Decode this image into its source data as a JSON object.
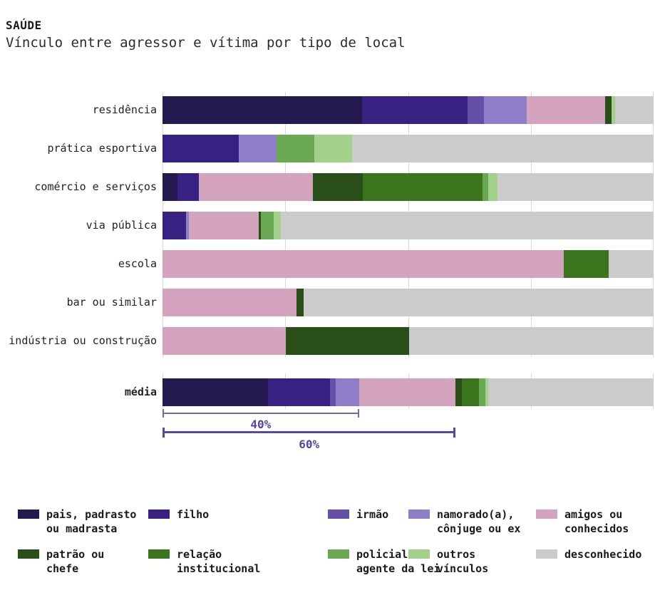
{
  "header": {
    "title": "SAÚDE",
    "subtitle": "Vínculo entre agressor e vítima por tipo de local"
  },
  "palette": {
    "pais": "#241a50",
    "filho": "#372182",
    "irmao": "#6550a9",
    "namorado": "#8e7ec7",
    "amigos": "#d4a4bf",
    "patrao": "#2a4e17",
    "relacao": "#3a751d",
    "policial": "#6aa853",
    "outros": "#a3d08a",
    "desconhecido": "#cbcbcb"
  },
  "chart_data": {
    "type": "bar",
    "orientation": "horizontal-stacked",
    "unit": "percent",
    "title": "SAÚDE",
    "subtitle": "Vínculo entre agressor e vítima por tipo de local",
    "axis": {
      "min": 0,
      "max": 100,
      "gridlines": [
        0,
        25,
        50,
        75,
        100
      ],
      "labels_shown": false
    },
    "legend_position": "bottom",
    "categories": [
      "residência",
      "prática esportiva",
      "comércio e serviços",
      "via pública",
      "escola",
      "bar ou similar",
      "indústria ou construção"
    ],
    "rows": [
      {
        "label": "residência",
        "bold": false,
        "segments": [
          {
            "key": "pais",
            "value": 40.7
          },
          {
            "key": "filho",
            "value": 21.4
          },
          {
            "key": "irmao",
            "value": 3.4
          },
          {
            "key": "namorado",
            "value": 8.6
          },
          {
            "key": "amigos",
            "value": 16.1
          },
          {
            "key": "patrao",
            "value": 1.3
          },
          {
            "key": "outros",
            "value": 0.6
          },
          {
            "key": "desconhecido",
            "value": 7.9
          }
        ]
      },
      {
        "label": "prática esportiva",
        "bold": false,
        "segments": [
          {
            "key": "filho",
            "value": 15.6
          },
          {
            "key": "namorado",
            "value": 7.6
          },
          {
            "key": "policial",
            "value": 7.7
          },
          {
            "key": "outros",
            "value": 7.7
          },
          {
            "key": "desconhecido",
            "value": 61.4
          }
        ]
      },
      {
        "label": "comércio e serviços",
        "bold": false,
        "segments": [
          {
            "key": "pais",
            "value": 3.1
          },
          {
            "key": "filho",
            "value": 4.3
          },
          {
            "key": "amigos",
            "value": 23.2
          },
          {
            "key": "patrao",
            "value": 10.2
          },
          {
            "key": "relacao",
            "value": 24.4
          },
          {
            "key": "policial",
            "value": 1.2
          },
          {
            "key": "outros",
            "value": 1.8
          },
          {
            "key": "desconhecido",
            "value": 31.8
          }
        ]
      },
      {
        "label": "via pública",
        "bold": false,
        "segments": [
          {
            "key": "filho",
            "value": 4.8
          },
          {
            "key": "namorado",
            "value": 0.5
          },
          {
            "key": "amigos",
            "value": 14.3
          },
          {
            "key": "patrao",
            "value": 0.5
          },
          {
            "key": "policial",
            "value": 2.5
          },
          {
            "key": "outros",
            "value": 1.5
          },
          {
            "key": "desconhecido",
            "value": 75.9
          }
        ]
      },
      {
        "label": "escola",
        "bold": false,
        "segments": [
          {
            "key": "amigos",
            "value": 81.7
          },
          {
            "key": "relacao",
            "value": 9.1
          },
          {
            "key": "desconhecido",
            "value": 9.2
          }
        ]
      },
      {
        "label": "bar ou similar",
        "bold": false,
        "segments": [
          {
            "key": "amigos",
            "value": 27.3
          },
          {
            "key": "patrao",
            "value": 1.5
          },
          {
            "key": "desconhecido",
            "value": 71.2
          }
        ]
      },
      {
        "label": "indústria ou construção",
        "bold": false,
        "segments": [
          {
            "key": "amigos",
            "value": 25.1
          },
          {
            "key": "patrao",
            "value": 25.1
          },
          {
            "key": "desconhecido",
            "value": 49.8
          }
        ]
      }
    ],
    "average_row": {
      "label": "média",
      "bold": true,
      "segments": [
        {
          "key": "pais",
          "value": 21.5
        },
        {
          "key": "filho",
          "value": 12.6
        },
        {
          "key": "irmao",
          "value": 1.2
        },
        {
          "key": "namorado",
          "value": 4.7
        },
        {
          "key": "amigos",
          "value": 19.7
        },
        {
          "key": "patrao",
          "value": 1.3
        },
        {
          "key": "relacao",
          "value": 3.4
        },
        {
          "key": "policial",
          "value": 1.3
        },
        {
          "key": "outros",
          "value": 0.6
        },
        {
          "key": "desconhecido",
          "value": 33.7
        }
      ]
    },
    "annotations": [
      {
        "label": "40%",
        "span": 40.0
      },
      {
        "label": "60%",
        "span": 59.7
      }
    ],
    "legend": [
      {
        "key": "pais",
        "label": "pais, padrasto\nou madrasta"
      },
      {
        "key": "filho",
        "label": "filho"
      },
      {
        "key": "irmao",
        "label": "irmão"
      },
      {
        "key": "namorado",
        "label": "namorado(a),\ncônjuge ou ex"
      },
      {
        "key": "amigos",
        "label": "amigos ou\nconhecidos"
      },
      {
        "key": "patrao",
        "label": "patrão ou\nchefe"
      },
      {
        "key": "relacao",
        "label": "relação\ninstitucional"
      },
      {
        "key": "policial",
        "label": "policial ou\nagente da lei"
      },
      {
        "key": "outros",
        "label": "outros\nvínculos"
      },
      {
        "key": "desconhecido",
        "label": "desconhecido"
      }
    ]
  }
}
